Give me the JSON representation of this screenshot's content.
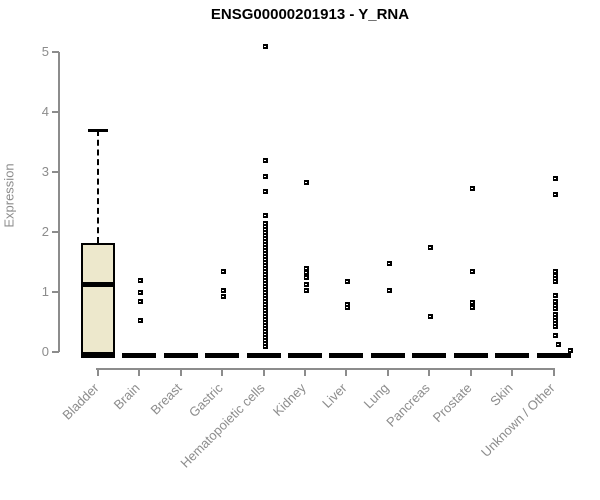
{
  "chart_data": {
    "type": "boxplot",
    "title": "ENSG00000201913 - Y_RNA",
    "ylabel": "Expression",
    "ylim": [
      0,
      5
    ],
    "yticks": [
      0,
      1,
      2,
      3,
      4,
      5
    ],
    "grid": false,
    "legend": false,
    "categories": [
      "Bladder",
      "Brain",
      "Breast",
      "Gastric",
      "Hematopoietic cells",
      "Kidney",
      "Liver",
      "Lung",
      "Pancreas",
      "Prostate",
      "Skin",
      "Unknown / Other"
    ],
    "note": "All categories except Bladder collapse to a thick bar at expression 0; individual samples shown as small square points",
    "boxes": [
      {
        "category": "Bladder",
        "whisker_low": 0,
        "q1": 0,
        "median": 1.13,
        "q3": 1.82,
        "whisker_high": 3.7
      }
    ],
    "zero_bar_values": {
      "min": 0,
      "median": 0,
      "max": 0
    },
    "points": {
      "Bladder": [],
      "Brain": [
        1.2,
        1.0,
        0.85,
        0.52
      ],
      "Breast": [],
      "Gastric": [
        1.35,
        1.02,
        0.93
      ],
      "Hematopoietic cells": [
        5.1,
        3.2,
        2.93,
        2.68,
        2.27,
        2.15,
        2.1,
        2.05,
        2.0,
        1.95,
        1.9,
        1.85,
        1.8,
        1.75,
        1.7,
        1.65,
        1.6,
        1.55,
        1.5,
        1.45,
        1.4,
        1.35,
        1.3,
        1.25,
        1.2,
        1.15,
        1.1,
        1.05,
        1.0,
        0.95,
        0.9,
        0.85,
        0.8,
        0.75,
        0.7,
        0.65,
        0.6,
        0.55,
        0.5,
        0.45,
        0.4,
        0.35,
        0.3,
        0.25,
        0.2,
        0.15,
        0.1
      ],
      "Kidney": [
        2.82,
        1.4,
        1.32,
        1.24,
        1.12,
        1.02
      ],
      "Liver": [
        1.17,
        0.8,
        0.74
      ],
      "Lung": [
        1.48,
        1.03
      ],
      "Pancreas": [
        1.75,
        0.6
      ],
      "Prostate": [
        2.72,
        1.35,
        0.82,
        0.75
      ],
      "Skin": [],
      "Unknown / Other": [
        2.9,
        2.62,
        1.35,
        1.28,
        1.22,
        1.17,
        0.95,
        0.85,
        0.78,
        0.73,
        0.62,
        0.57,
        0.52,
        0.47,
        0.42,
        0.28,
        {
          "v": 0.12,
          "dx": 5
        },
        {
          "v": 0.02,
          "dx": 17
        }
      ]
    },
    "colors": {
      "box_fill": "#EDE8CC",
      "box_border": "#000000",
      "point": "#000000",
      "zero_bar": "#000000",
      "axis": "#8c8c8c",
      "title": "#000000"
    }
  }
}
